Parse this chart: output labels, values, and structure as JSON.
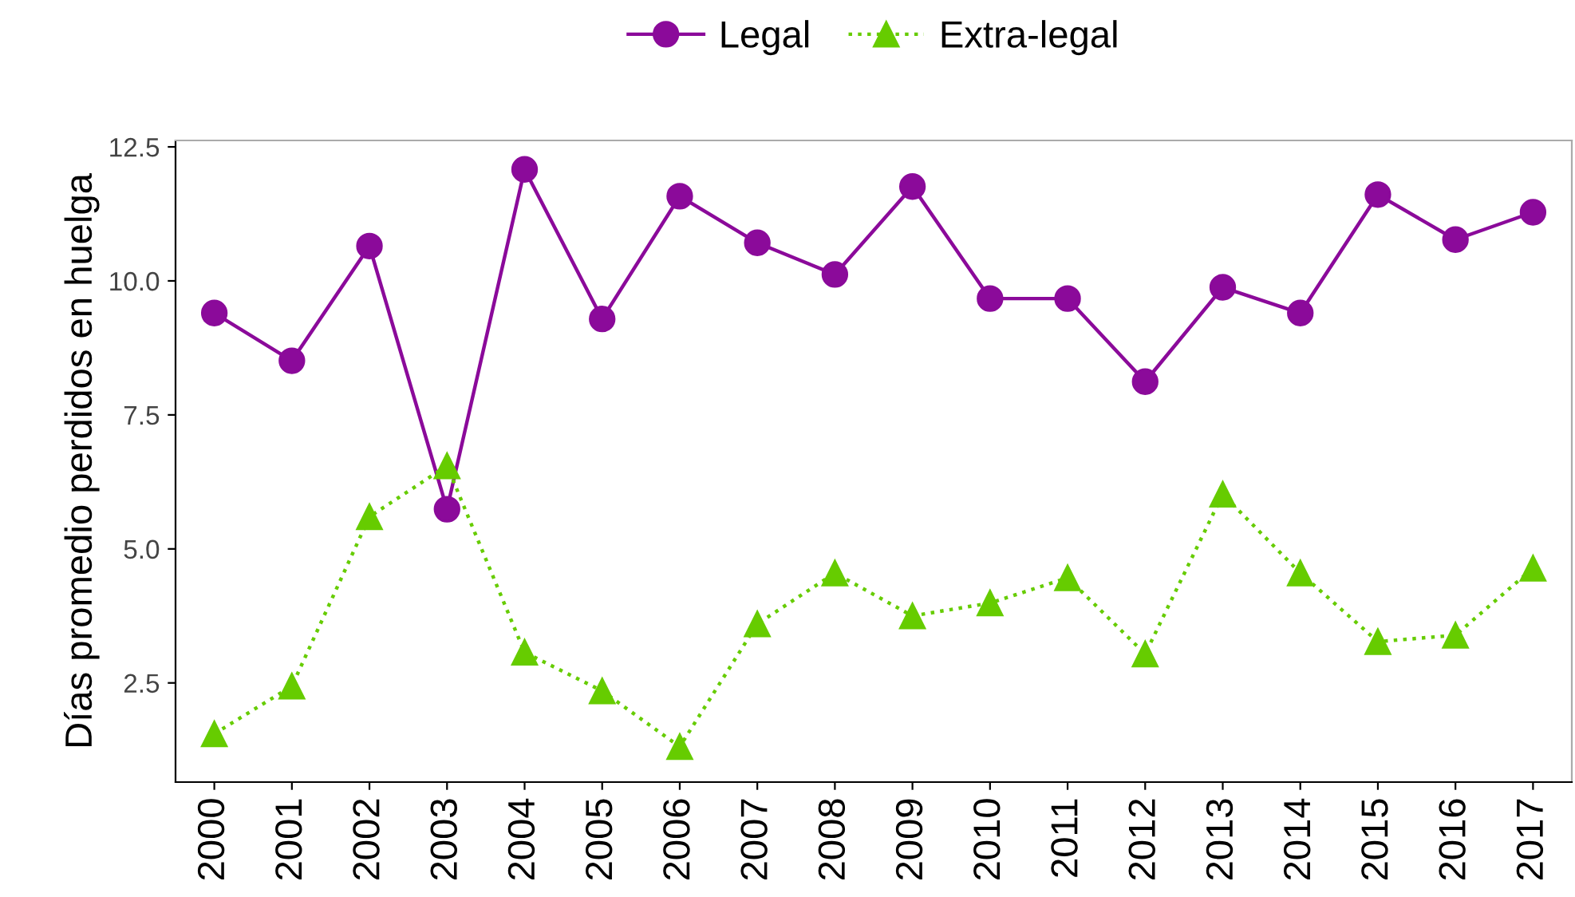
{
  "chart_data": {
    "type": "line",
    "categories": [
      "2000",
      "2001",
      "2002",
      "2003",
      "2004",
      "2005",
      "2006",
      "2007",
      "2008",
      "2009",
      "2010",
      "2011",
      "2012",
      "2013",
      "2014",
      "2015",
      "2016",
      "2017"
    ],
    "ylabel": "Días promedio perdidos en huelga",
    "ylim": [
      0.65,
      12.62
    ],
    "yticks": [
      2.5,
      {
        "value": 5,
        "label": "5.0"
      },
      7.5,
      {
        "value": 10,
        "label": "10.0"
      },
      12.5
    ],
    "grid": false,
    "legend": "top",
    "series": [
      {
        "name": "Legal",
        "color": "#8b0a9a",
        "marker": "circle",
        "line_style": "solid",
        "values": [
          9.4,
          8.51,
          10.65,
          5.74,
          12.08,
          9.29,
          11.58,
          10.71,
          10.12,
          11.76,
          9.67,
          9.67,
          8.12,
          9.88,
          9.4,
          11.61,
          10.77,
          11.28
        ]
      },
      {
        "name": "Extra-legal",
        "color": "#66cc00",
        "marker": "triangle",
        "line_style": "dotted",
        "values": [
          1.55,
          2.44,
          5.6,
          6.55,
          3.07,
          2.35,
          1.31,
          3.6,
          4.55,
          3.75,
          3.99,
          4.46,
          3.04,
          6.02,
          4.55,
          3.27,
          3.39,
          4.64
        ]
      }
    ]
  }
}
